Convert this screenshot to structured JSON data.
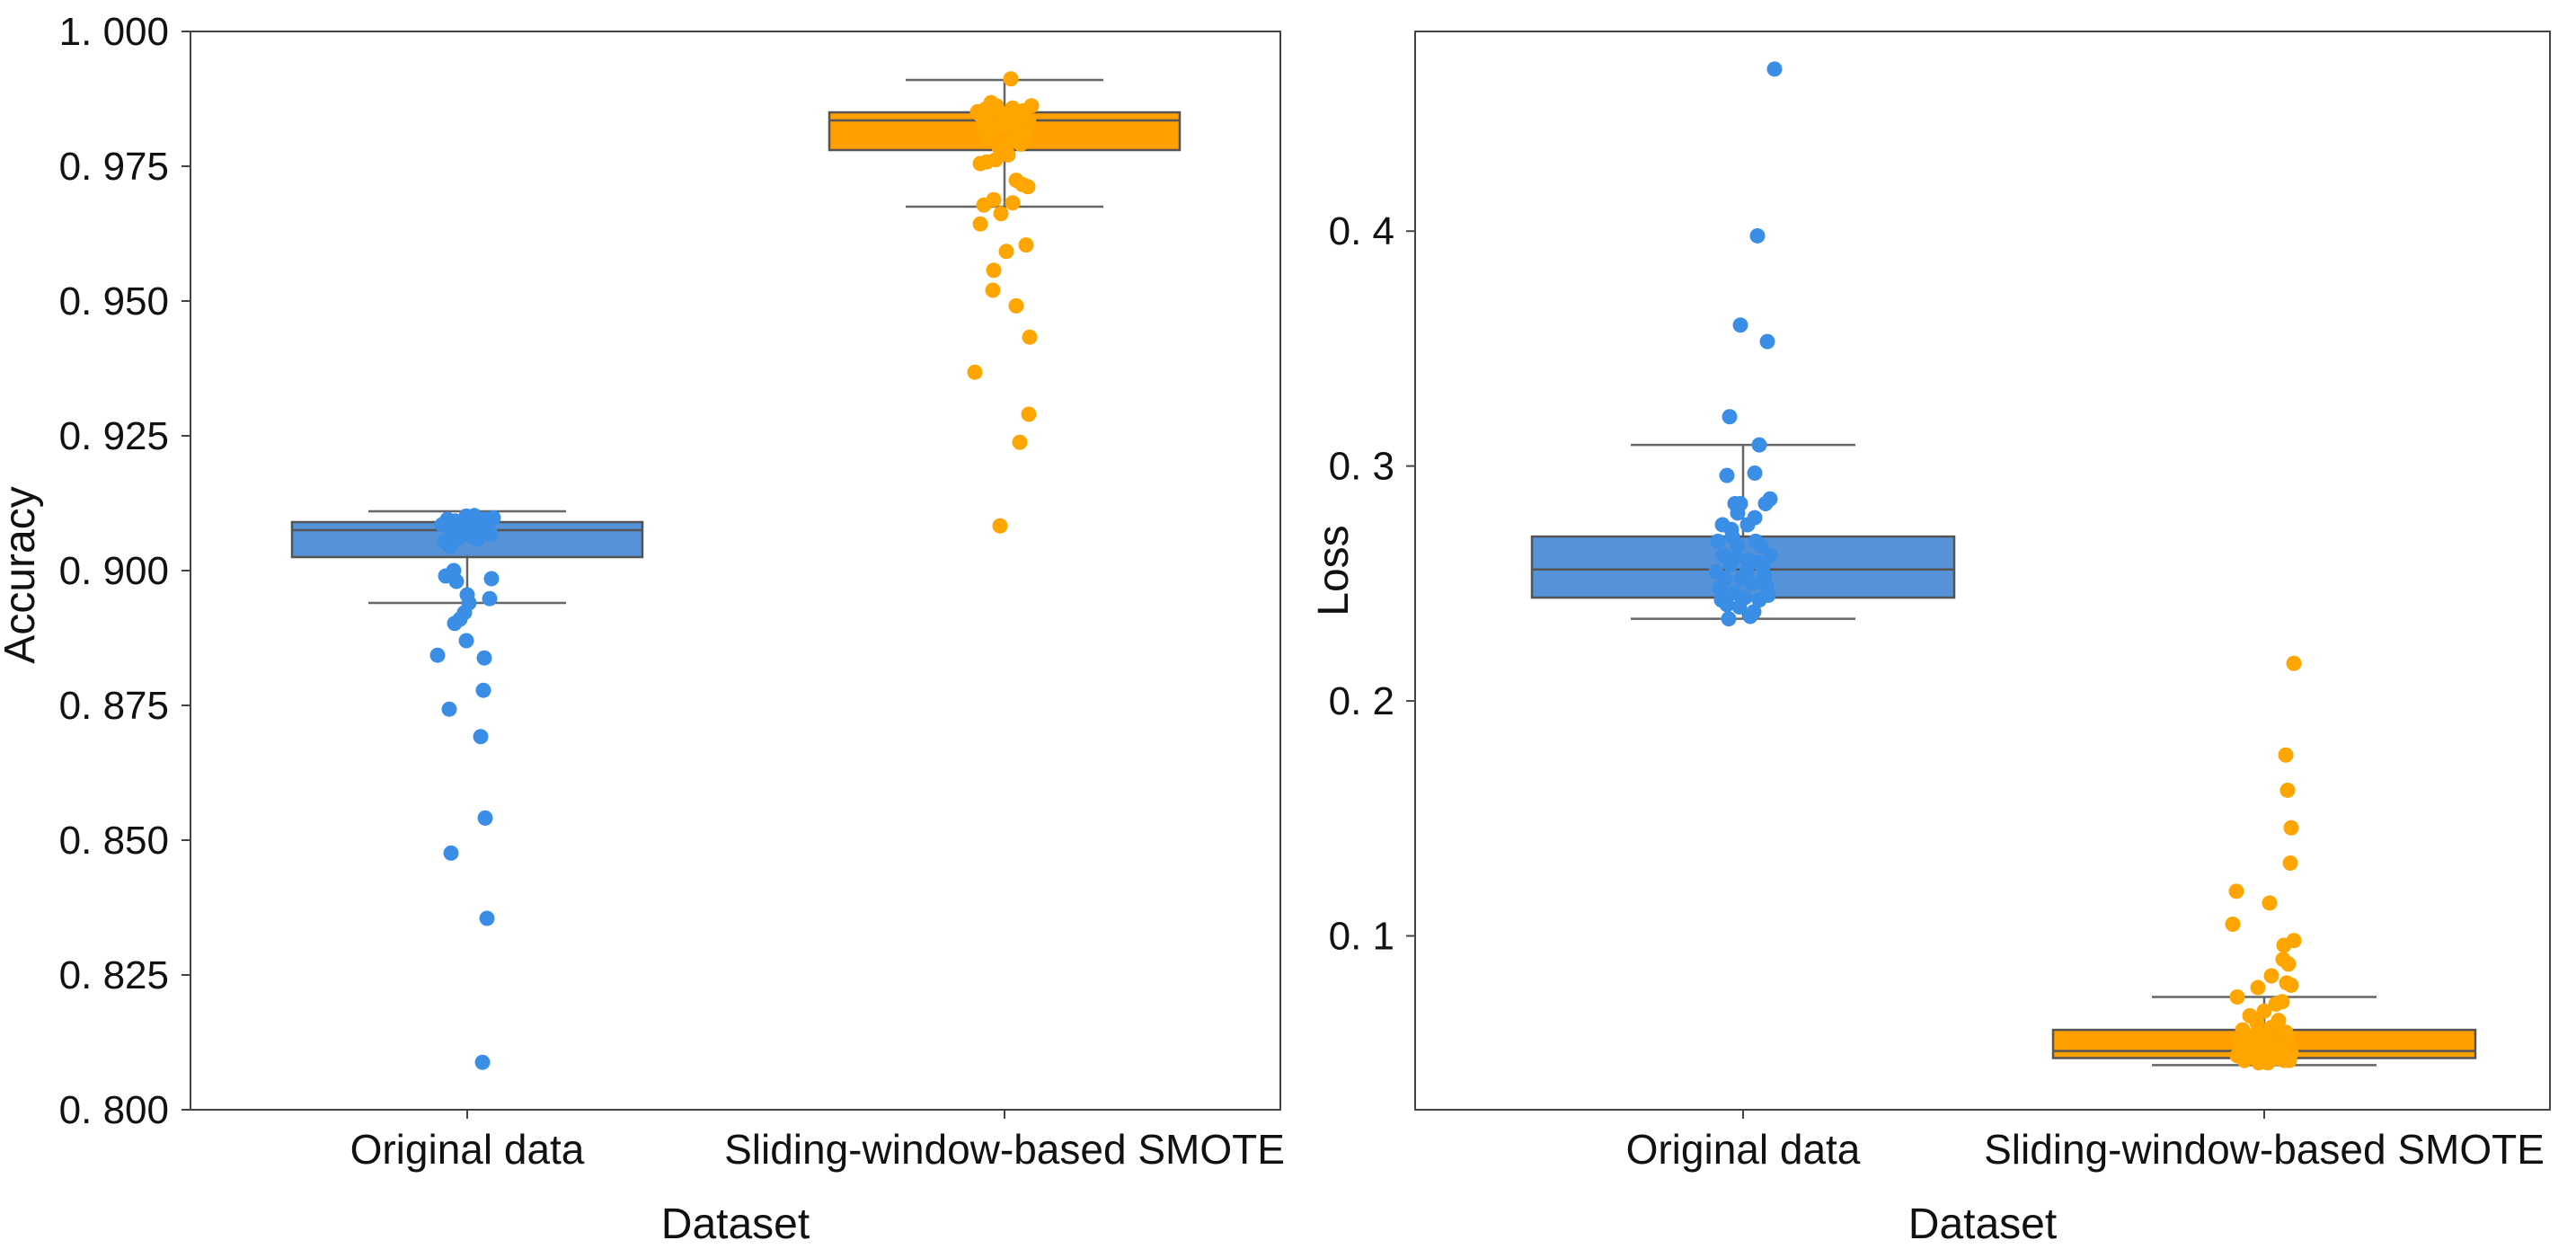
{
  "chart_data": [
    {
      "type": "box",
      "xlabel": "Dataset",
      "ylabel": "Accuracy",
      "ylim": [
        0.8,
        1.0
      ],
      "yticks": [
        "1. 000",
        "0. 975",
        "0. 950",
        "0. 925",
        "0. 900",
        "0. 875",
        "0. 850",
        "0. 825",
        "0. 800"
      ],
      "ytick_values": [
        1.0,
        0.975,
        0.95,
        0.925,
        0.9,
        0.875,
        0.85,
        0.825,
        0.8
      ],
      "categories": [
        "Original data",
        "Sliding-window-based SMOTE"
      ],
      "series": [
        {
          "name": "Original data",
          "color": "#3a8ee6",
          "box_fill": "#5592d8",
          "stats": {
            "whisker_low": 0.894,
            "q1": 0.9025,
            "median": 0.9075,
            "q3": 0.909,
            "whisker_high": 0.911
          },
          "points": [
            {
              "jitter": -0.28,
              "value": 0.9085
            },
            {
              "jitter": -0.22,
              "value": 0.9095
            },
            {
              "jitter": -0.16,
              "value": 0.9072
            },
            {
              "jitter": -0.1,
              "value": 0.906
            },
            {
              "jitter": -0.04,
              "value": 0.9088
            },
            {
              "jitter": 0.02,
              "value": 0.9078
            },
            {
              "jitter": 0.08,
              "value": 0.9102
            },
            {
              "jitter": 0.14,
              "value": 0.908
            },
            {
              "jitter": 0.2,
              "value": 0.9095
            },
            {
              "jitter": 0.26,
              "value": 0.9068
            },
            {
              "jitter": -0.25,
              "value": 0.9055
            },
            {
              "jitter": -0.13,
              "value": 0.9092
            },
            {
              "jitter": 0.05,
              "value": 0.9064
            },
            {
              "jitter": 0.17,
              "value": 0.909
            },
            {
              "jitter": 0.23,
              "value": 0.9076
            },
            {
              "jitter": -0.19,
              "value": 0.9045
            },
            {
              "jitter": 0.11,
              "value": 0.9058
            },
            {
              "jitter": -0.07,
              "value": 0.9082
            },
            {
              "jitter": 0.29,
              "value": 0.9098
            },
            {
              "jitter": -0.01,
              "value": 0.9101
            },
            {
              "jitter": -0.24,
              "value": 0.899
            },
            {
              "jitter": -0.15,
              "value": 0.9
            },
            {
              "jitter": -0.12,
              "value": 0.898
            },
            {
              "jitter": 0.27,
              "value": 0.8985
            },
            {
              "jitter": 0.0,
              "value": 0.8955
            },
            {
              "jitter": 0.02,
              "value": 0.894
            },
            {
              "jitter": -0.03,
              "value": 0.8922
            },
            {
              "jitter": -0.08,
              "value": 0.891
            },
            {
              "jitter": 0.25,
              "value": 0.8948
            },
            {
              "jitter": -0.14,
              "value": 0.8902
            },
            {
              "jitter": -0.01,
              "value": 0.887
            },
            {
              "jitter": -0.33,
              "value": 0.8843
            },
            {
              "jitter": 0.19,
              "value": 0.8838
            },
            {
              "jitter": 0.18,
              "value": 0.8778
            },
            {
              "jitter": -0.2,
              "value": 0.8743
            },
            {
              "jitter": 0.15,
              "value": 0.8692
            },
            {
              "jitter": 0.2,
              "value": 0.8541
            },
            {
              "jitter": -0.18,
              "value": 0.8476
            },
            {
              "jitter": 0.22,
              "value": 0.8355
            },
            {
              "jitter": 0.17,
              "value": 0.8088
            }
          ]
        },
        {
          "name": "Sliding-window-based SMOTE",
          "color": "#ffa500",
          "box_fill": "#ff9f00",
          "stats": {
            "whisker_low": 0.9675,
            "q1": 0.978,
            "median": 0.9835,
            "q3": 0.985,
            "whisker_high": 0.991
          },
          "points": [
            {
              "jitter": -0.27,
              "value": 0.9845
            },
            {
              "jitter": -0.21,
              "value": 0.9856
            },
            {
              "jitter": -0.15,
              "value": 0.9838
            },
            {
              "jitter": -0.09,
              "value": 0.9862
            },
            {
              "jitter": -0.03,
              "value": 0.9848
            },
            {
              "jitter": 0.03,
              "value": 0.9835
            },
            {
              "jitter": 0.09,
              "value": 0.9858
            },
            {
              "jitter": 0.15,
              "value": 0.9842
            },
            {
              "jitter": 0.21,
              "value": 0.9853
            },
            {
              "jitter": 0.27,
              "value": 0.9831
            },
            {
              "jitter": -0.24,
              "value": 0.9822
            },
            {
              "jitter": -0.12,
              "value": 0.9815
            },
            {
              "jitter": 0.0,
              "value": 0.9826
            },
            {
              "jitter": 0.12,
              "value": 0.9818
            },
            {
              "jitter": 0.24,
              "value": 0.9808
            },
            {
              "jitter": -0.18,
              "value": 0.9802
            },
            {
              "jitter": 0.06,
              "value": 0.9798
            },
            {
              "jitter": 0.18,
              "value": 0.9791
            },
            {
              "jitter": -0.06,
              "value": 0.9785
            },
            {
              "jitter": 0.3,
              "value": 0.9862
            },
            {
              "jitter": -0.3,
              "value": 0.9851
            },
            {
              "jitter": 0.09,
              "value": 0.9832
            },
            {
              "jitter": -0.15,
              "value": 0.9868
            },
            {
              "jitter": -0.1,
              "value": 0.9762
            },
            {
              "jitter": -0.2,
              "value": 0.9758
            },
            {
              "jitter": 0.04,
              "value": 0.9771
            },
            {
              "jitter": -0.27,
              "value": 0.9755
            },
            {
              "jitter": 0.07,
              "value": 0.9912
            },
            {
              "jitter": 0.13,
              "value": 0.9724
            },
            {
              "jitter": 0.2,
              "value": 0.9716
            },
            {
              "jitter": 0.26,
              "value": 0.9712
            },
            {
              "jitter": -0.12,
              "value": 0.9688
            },
            {
              "jitter": 0.09,
              "value": 0.9682
            },
            {
              "jitter": -0.23,
              "value": 0.9678
            },
            {
              "jitter": -0.27,
              "value": 0.9643
            },
            {
              "jitter": -0.04,
              "value": 0.9662
            },
            {
              "jitter": 0.24,
              "value": 0.9604
            },
            {
              "jitter": 0.02,
              "value": 0.9592
            },
            {
              "jitter": -0.12,
              "value": 0.9557
            },
            {
              "jitter": 0.13,
              "value": 0.9491
            },
            {
              "jitter": -0.13,
              "value": 0.952
            },
            {
              "jitter": 0.28,
              "value": 0.9433
            },
            {
              "jitter": -0.33,
              "value": 0.9368
            },
            {
              "jitter": 0.27,
              "value": 0.929
            },
            {
              "jitter": 0.17,
              "value": 0.9238
            },
            {
              "jitter": -0.05,
              "value": 0.9083
            }
          ]
        }
      ]
    },
    {
      "type": "box",
      "xlabel": "Dataset",
      "ylabel": "Loss",
      "ylim": [
        0.026,
        0.485
      ],
      "yticks": [
        "0. 4",
        "0. 3",
        "0. 2",
        "0. 1"
      ],
      "ytick_values": [
        0.4,
        0.3,
        0.2,
        0.1
      ],
      "categories": [
        "Original data",
        "Sliding-window-based SMOTE"
      ],
      "series": [
        {
          "name": "Original data",
          "color": "#3a8ee6",
          "box_fill": "#5592d8",
          "stats": {
            "whisker_low": 0.235,
            "q1": 0.244,
            "median": 0.256,
            "q3": 0.27,
            "whisker_high": 0.309
          },
          "points": [
            {
              "jitter": -0.3,
              "value": 0.255
            },
            {
              "jitter": -0.26,
              "value": 0.248
            },
            {
              "jitter": -0.22,
              "value": 0.262
            },
            {
              "jitter": -0.18,
              "value": 0.241
            },
            {
              "jitter": -0.14,
              "value": 0.258
            },
            {
              "jitter": -0.1,
              "value": 0.246
            },
            {
              "jitter": -0.06,
              "value": 0.266
            },
            {
              "jitter": -0.02,
              "value": 0.252
            },
            {
              "jitter": 0.02,
              "value": 0.244
            },
            {
              "jitter": 0.06,
              "value": 0.26
            },
            {
              "jitter": 0.1,
              "value": 0.25
            },
            {
              "jitter": 0.14,
              "value": 0.268
            },
            {
              "jitter": 0.18,
              "value": 0.243
            },
            {
              "jitter": 0.22,
              "value": 0.257
            },
            {
              "jitter": 0.26,
              "value": 0.249
            },
            {
              "jitter": 0.3,
              "value": 0.262
            },
            {
              "jitter": -0.28,
              "value": 0.268
            },
            {
              "jitter": -0.2,
              "value": 0.252
            },
            {
              "jitter": -0.12,
              "value": 0.27
            },
            {
              "jitter": -0.04,
              "value": 0.24
            },
            {
              "jitter": 0.04,
              "value": 0.255
            },
            {
              "jitter": 0.12,
              "value": 0.238
            },
            {
              "jitter": 0.2,
              "value": 0.266
            },
            {
              "jitter": 0.28,
              "value": 0.245
            },
            {
              "jitter": -0.24,
              "value": 0.243
            },
            {
              "jitter": -0.08,
              "value": 0.261
            },
            {
              "jitter": 0.08,
              "value": 0.236
            },
            {
              "jitter": 0.24,
              "value": 0.253
            },
            {
              "jitter": -0.16,
              "value": 0.235
            },
            {
              "jitter": 0.16,
              "value": 0.259
            },
            {
              "jitter": -0.13,
              "value": 0.273
            },
            {
              "jitter": 0.05,
              "value": 0.275
            },
            {
              "jitter": -0.06,
              "value": 0.28
            },
            {
              "jitter": 0.13,
              "value": 0.278
            },
            {
              "jitter": -0.23,
              "value": 0.275
            },
            {
              "jitter": 0.25,
              "value": 0.284
            },
            {
              "jitter": 0.3,
              "value": 0.286
            },
            {
              "jitter": -0.09,
              "value": 0.284
            },
            {
              "jitter": -0.03,
              "value": 0.284
            },
            {
              "jitter": 0.13,
              "value": 0.297
            },
            {
              "jitter": -0.18,
              "value": 0.296
            },
            {
              "jitter": 0.18,
              "value": 0.309
            },
            {
              "jitter": -0.15,
              "value": 0.321
            },
            {
              "jitter": 0.27,
              "value": 0.353
            },
            {
              "jitter": -0.03,
              "value": 0.36
            },
            {
              "jitter": 0.16,
              "value": 0.398
            },
            {
              "jitter": 0.35,
              "value": 0.469
            }
          ]
        },
        {
          "name": "Sliding-window-based SMOTE",
          "color": "#ffa500",
          "box_fill": "#ff9f00",
          "stats": {
            "whisker_low": 0.045,
            "q1": 0.048,
            "median": 0.051,
            "q3": 0.06,
            "whisker_high": 0.074
          },
          "points": [
            {
              "jitter": -0.3,
              "value": 0.049
            },
            {
              "jitter": -0.26,
              "value": 0.052
            },
            {
              "jitter": -0.22,
              "value": 0.047
            },
            {
              "jitter": -0.18,
              "value": 0.055
            },
            {
              "jitter": -0.14,
              "value": 0.05
            },
            {
              "jitter": -0.1,
              "value": 0.058
            },
            {
              "jitter": -0.06,
              "value": 0.046
            },
            {
              "jitter": -0.02,
              "value": 0.053
            },
            {
              "jitter": 0.02,
              "value": 0.049
            },
            {
              "jitter": 0.06,
              "value": 0.057
            },
            {
              "jitter": 0.1,
              "value": 0.051
            },
            {
              "jitter": 0.14,
              "value": 0.048
            },
            {
              "jitter": 0.18,
              "value": 0.054
            },
            {
              "jitter": 0.22,
              "value": 0.047
            },
            {
              "jitter": 0.26,
              "value": 0.056
            },
            {
              "jitter": 0.3,
              "value": 0.05
            },
            {
              "jitter": -0.28,
              "value": 0.056
            },
            {
              "jitter": -0.2,
              "value": 0.048
            },
            {
              "jitter": -0.12,
              "value": 0.052
            },
            {
              "jitter": -0.04,
              "value": 0.058
            },
            {
              "jitter": 0.04,
              "value": 0.046
            },
            {
              "jitter": 0.12,
              "value": 0.053
            },
            {
              "jitter": 0.2,
              "value": 0.05
            },
            {
              "jitter": 0.28,
              "value": 0.047
            },
            {
              "jitter": -0.24,
              "value": 0.06
            },
            {
              "jitter": -0.08,
              "value": 0.063
            },
            {
              "jitter": 0.08,
              "value": 0.061
            },
            {
              "jitter": 0.24,
              "value": 0.059
            },
            {
              "jitter": -0.16,
              "value": 0.066
            },
            {
              "jitter": 0.16,
              "value": 0.064
            },
            {
              "jitter": 0.0,
              "value": 0.068
            },
            {
              "jitter": -0.3,
              "value": 0.074
            },
            {
              "jitter": 0.2,
              "value": 0.072
            },
            {
              "jitter": 0.13,
              "value": 0.071
            },
            {
              "jitter": -0.07,
              "value": 0.078
            },
            {
              "jitter": 0.25,
              "value": 0.08
            },
            {
              "jitter": 0.3,
              "value": 0.079
            },
            {
              "jitter": 0.08,
              "value": 0.083
            },
            {
              "jitter": 0.27,
              "value": 0.088
            },
            {
              "jitter": 0.21,
              "value": 0.09
            },
            {
              "jitter": 0.22,
              "value": 0.096
            },
            {
              "jitter": 0.33,
              "value": 0.098
            },
            {
              "jitter": -0.35,
              "value": 0.105
            },
            {
              "jitter": 0.06,
              "value": 0.114
            },
            {
              "jitter": -0.31,
              "value": 0.119
            },
            {
              "jitter": 0.29,
              "value": 0.131
            },
            {
              "jitter": 0.3,
              "value": 0.146
            },
            {
              "jitter": 0.26,
              "value": 0.162
            },
            {
              "jitter": 0.24,
              "value": 0.177
            },
            {
              "jitter": 0.33,
              "value": 0.216
            }
          ]
        }
      ]
    }
  ]
}
